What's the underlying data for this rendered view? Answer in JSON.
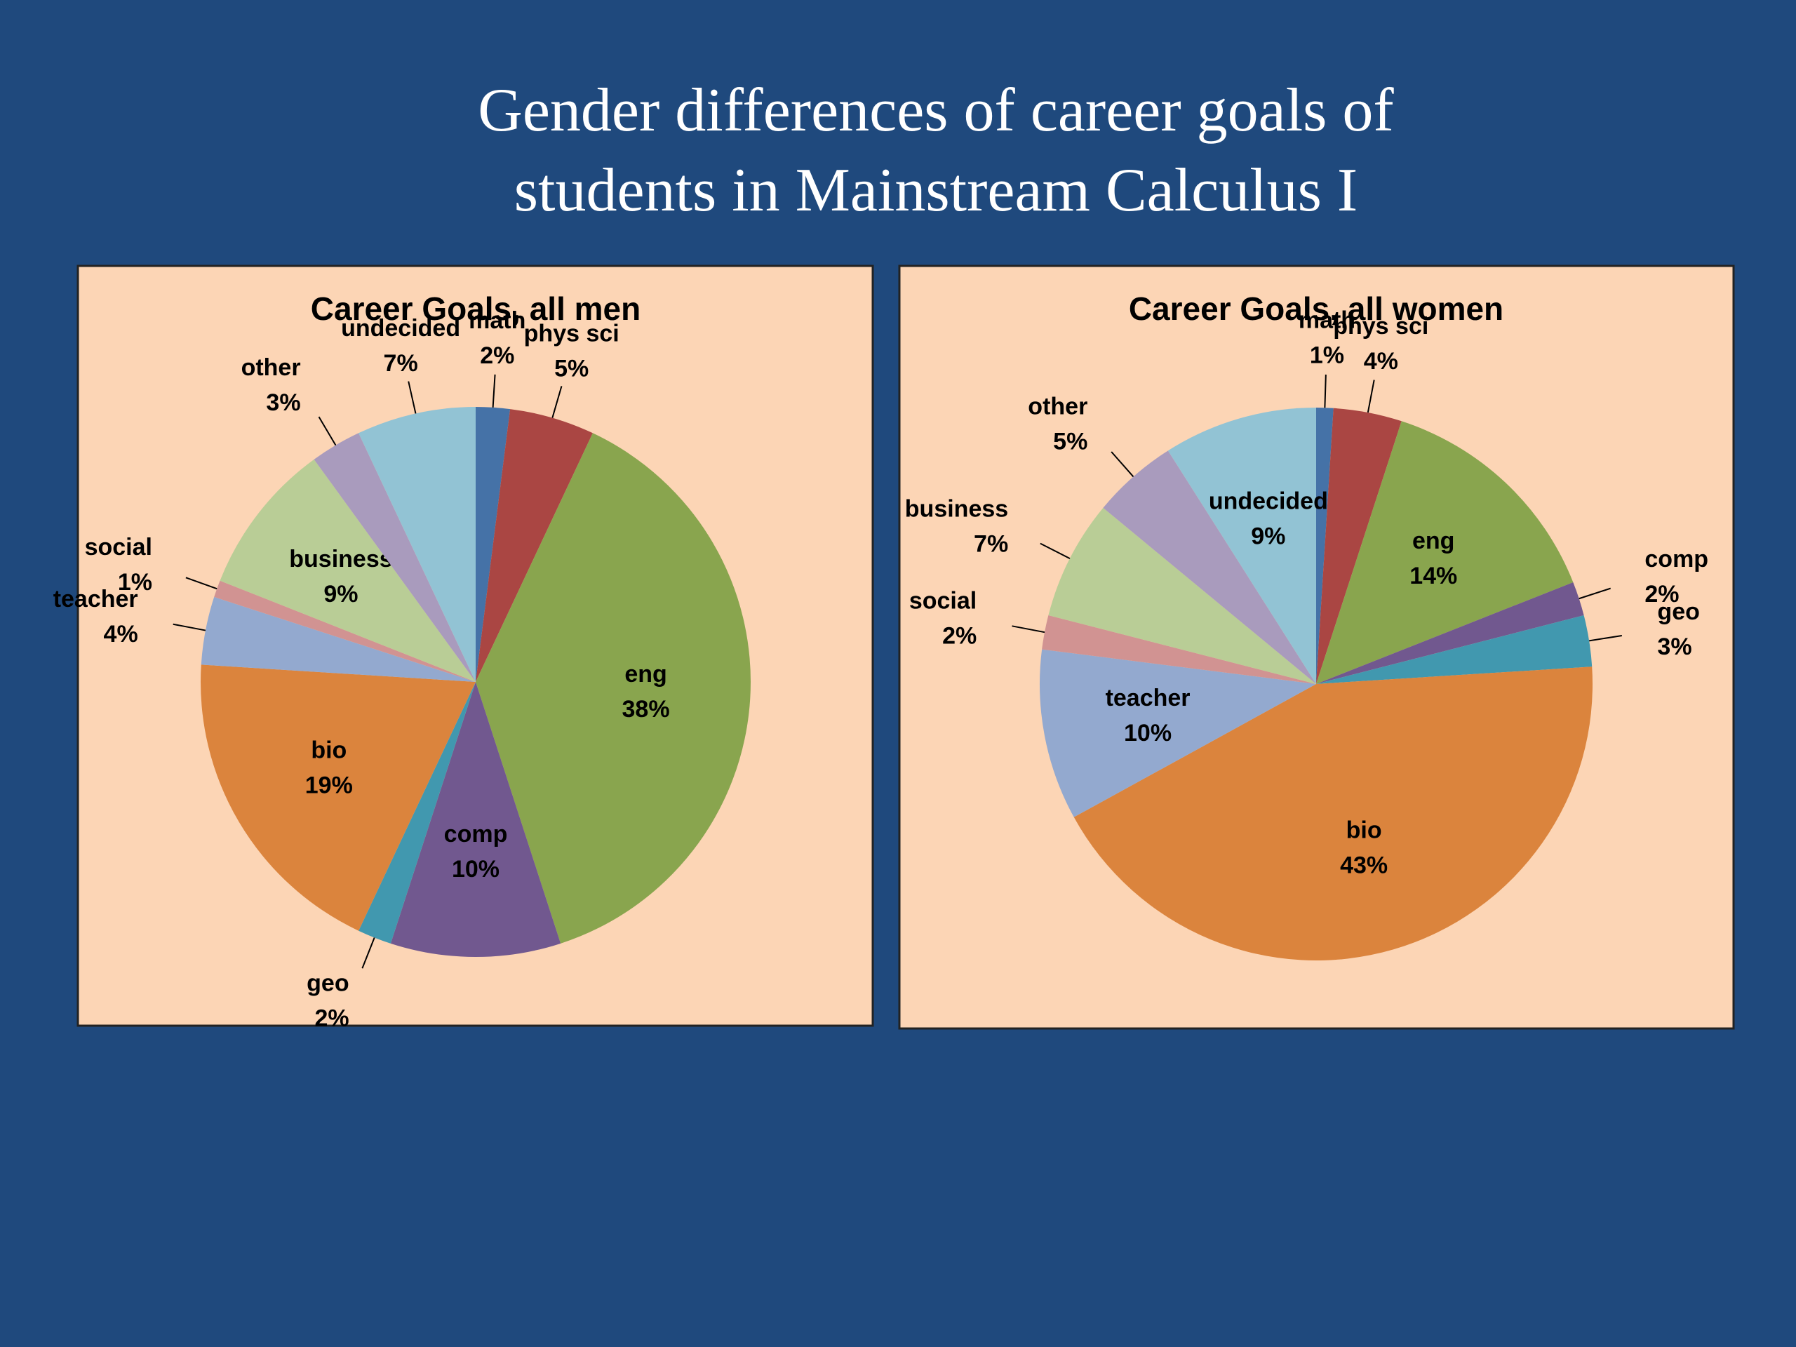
{
  "title": [
    "Gender differences of career goals of",
    "students in Mainstream Calculus I"
  ],
  "chart_data": [
    {
      "type": "pie",
      "title": "Career Goals, all men",
      "categories": [
        "math",
        "phys sci",
        "eng",
        "comp",
        "geo",
        "bio",
        "teacher",
        "social",
        "business",
        "other",
        "undecided"
      ],
      "values": [
        2,
        5,
        38,
        10,
        2,
        19,
        4,
        1,
        9,
        3,
        7
      ],
      "value_labels": [
        "2%",
        "5%",
        "38%",
        "10%",
        "2%",
        "19%",
        "4%",
        "1%",
        "9%",
        "3%",
        "7%"
      ],
      "colors": [
        "#4572a7",
        "#aa4643",
        "#89a54e",
        "#71588f",
        "#4198af",
        "#db843d",
        "#93a9cf",
        "#d19392",
        "#b9cd96",
        "#a99bbd",
        "#92c3d4"
      ]
    },
    {
      "type": "pie",
      "title": "Career Goals, all women",
      "categories": [
        "math",
        "phys sci",
        "eng",
        "comp",
        "geo",
        "bio",
        "teacher",
        "social",
        "business",
        "other",
        "undecided"
      ],
      "values": [
        1,
        4,
        14,
        2,
        3,
        43,
        10,
        2,
        7,
        5,
        9
      ],
      "value_labels": [
        "1%",
        "4%",
        "14%",
        "2%",
        "3%",
        "43%",
        "10%",
        "2%",
        "7%",
        "5%",
        "9%"
      ],
      "colors": [
        "#4572a7",
        "#aa4643",
        "#89a54e",
        "#71588f",
        "#4198af",
        "#db843d",
        "#93a9cf",
        "#d19392",
        "#b9cd96",
        "#a99bbd",
        "#92c3d4"
      ]
    }
  ]
}
